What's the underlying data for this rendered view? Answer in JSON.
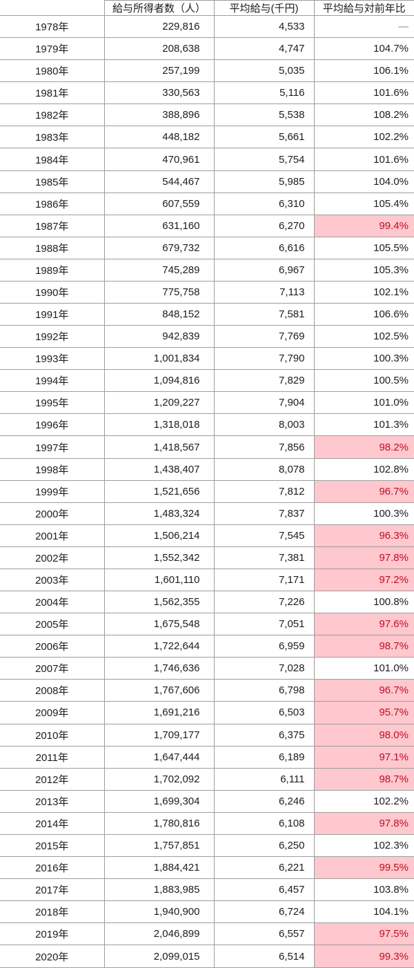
{
  "colors": {
    "border": "#9d9d9d",
    "text": "#1c1c1c",
    "highlight_bg": "#ffc7ce",
    "highlight_text": "#c00c20",
    "dash_text": "#8a8a8a"
  },
  "table": {
    "headers": {
      "year": "",
      "earners": "給与所得者数（人）",
      "avg_salary": "平均給与(千円)",
      "yoy": "平均給与対前年比"
    },
    "rows": [
      {
        "year": "1978年",
        "earners": "229,816",
        "avg": "4,533",
        "yoy": "―",
        "highlight": false,
        "dash": true
      },
      {
        "year": "1979年",
        "earners": "208,638",
        "avg": "4,747",
        "yoy": "104.7%",
        "highlight": false
      },
      {
        "year": "1980年",
        "earners": "257,199",
        "avg": "5,035",
        "yoy": "106.1%",
        "highlight": false
      },
      {
        "year": "1981年",
        "earners": "330,563",
        "avg": "5,116",
        "yoy": "101.6%",
        "highlight": false
      },
      {
        "year": "1982年",
        "earners": "388,896",
        "avg": "5,538",
        "yoy": "108.2%",
        "highlight": false
      },
      {
        "year": "1983年",
        "earners": "448,182",
        "avg": "5,661",
        "yoy": "102.2%",
        "highlight": false
      },
      {
        "year": "1984年",
        "earners": "470,961",
        "avg": "5,754",
        "yoy": "101.6%",
        "highlight": false
      },
      {
        "year": "1985年",
        "earners": "544,467",
        "avg": "5,985",
        "yoy": "104.0%",
        "highlight": false
      },
      {
        "year": "1986年",
        "earners": "607,559",
        "avg": "6,310",
        "yoy": "105.4%",
        "highlight": false
      },
      {
        "year": "1987年",
        "earners": "631,160",
        "avg": "6,270",
        "yoy": "99.4%",
        "highlight": true
      },
      {
        "year": "1988年",
        "earners": "679,732",
        "avg": "6,616",
        "yoy": "105.5%",
        "highlight": false
      },
      {
        "year": "1989年",
        "earners": "745,289",
        "avg": "6,967",
        "yoy": "105.3%",
        "highlight": false
      },
      {
        "year": "1990年",
        "earners": "775,758",
        "avg": "7,113",
        "yoy": "102.1%",
        "highlight": false
      },
      {
        "year": "1991年",
        "earners": "848,152",
        "avg": "7,581",
        "yoy": "106.6%",
        "highlight": false
      },
      {
        "year": "1992年",
        "earners": "942,839",
        "avg": "7,769",
        "yoy": "102.5%",
        "highlight": false
      },
      {
        "year": "1993年",
        "earners": "1,001,834",
        "avg": "7,790",
        "yoy": "100.3%",
        "highlight": false
      },
      {
        "year": "1994年",
        "earners": "1,094,816",
        "avg": "7,829",
        "yoy": "100.5%",
        "highlight": false
      },
      {
        "year": "1995年",
        "earners": "1,209,227",
        "avg": "7,904",
        "yoy": "101.0%",
        "highlight": false
      },
      {
        "year": "1996年",
        "earners": "1,318,018",
        "avg": "8,003",
        "yoy": "101.3%",
        "highlight": false
      },
      {
        "year": "1997年",
        "earners": "1,418,567",
        "avg": "7,856",
        "yoy": "98.2%",
        "highlight": true
      },
      {
        "year": "1998年",
        "earners": "1,438,407",
        "avg": "8,078",
        "yoy": "102.8%",
        "highlight": false
      },
      {
        "year": "1999年",
        "earners": "1,521,656",
        "avg": "7,812",
        "yoy": "96.7%",
        "highlight": true
      },
      {
        "year": "2000年",
        "earners": "1,483,324",
        "avg": "7,837",
        "yoy": "100.3%",
        "highlight": false
      },
      {
        "year": "2001年",
        "earners": "1,506,214",
        "avg": "7,545",
        "yoy": "96.3%",
        "highlight": true
      },
      {
        "year": "2002年",
        "earners": "1,552,342",
        "avg": "7,381",
        "yoy": "97.8%",
        "highlight": true
      },
      {
        "year": "2003年",
        "earners": "1,601,110",
        "avg": "7,171",
        "yoy": "97.2%",
        "highlight": true
      },
      {
        "year": "2004年",
        "earners": "1,562,355",
        "avg": "7,226",
        "yoy": "100.8%",
        "highlight": false
      },
      {
        "year": "2005年",
        "earners": "1,675,548",
        "avg": "7,051",
        "yoy": "97.6%",
        "highlight": true
      },
      {
        "year": "2006年",
        "earners": "1,722,644",
        "avg": "6,959",
        "yoy": "98.7%",
        "highlight": true
      },
      {
        "year": "2007年",
        "earners": "1,746,636",
        "avg": "7,028",
        "yoy": "101.0%",
        "highlight": false
      },
      {
        "year": "2008年",
        "earners": "1,767,606",
        "avg": "6,798",
        "yoy": "96.7%",
        "highlight": true
      },
      {
        "year": "2009年",
        "earners": "1,691,216",
        "avg": "6,503",
        "yoy": "95.7%",
        "highlight": true
      },
      {
        "year": "2010年",
        "earners": "1,709,177",
        "avg": "6,375",
        "yoy": "98.0%",
        "highlight": true
      },
      {
        "year": "2011年",
        "earners": "1,647,444",
        "avg": "6,189",
        "yoy": "97.1%",
        "highlight": true
      },
      {
        "year": "2012年",
        "earners": "1,702,092",
        "avg": "6,111",
        "yoy": "98.7%",
        "highlight": true
      },
      {
        "year": "2013年",
        "earners": "1,699,304",
        "avg": "6,246",
        "yoy": "102.2%",
        "highlight": false
      },
      {
        "year": "2014年",
        "earners": "1,780,816",
        "avg": "6,108",
        "yoy": "97.8%",
        "highlight": true
      },
      {
        "year": "2015年",
        "earners": "1,757,851",
        "avg": "6,250",
        "yoy": "102.3%",
        "highlight": false
      },
      {
        "year": "2016年",
        "earners": "1,884,421",
        "avg": "6,221",
        "yoy": "99.5%",
        "highlight": true
      },
      {
        "year": "2017年",
        "earners": "1,883,985",
        "avg": "6,457",
        "yoy": "103.8%",
        "highlight": false
      },
      {
        "year": "2018年",
        "earners": "1,940,900",
        "avg": "6,724",
        "yoy": "104.1%",
        "highlight": false
      },
      {
        "year": "2019年",
        "earners": "2,046,899",
        "avg": "6,557",
        "yoy": "97.5%",
        "highlight": true
      },
      {
        "year": "2020年",
        "earners": "2,099,015",
        "avg": "6,514",
        "yoy": "99.3%",
        "highlight": true
      }
    ]
  },
  "chart_data": {
    "type": "table",
    "title": "",
    "columns": [
      "",
      "給与所得者数（人）",
      "平均給与(千円)",
      "平均給与対前年比"
    ],
    "categories": [
      "1978年",
      "1979年",
      "1980年",
      "1981年",
      "1982年",
      "1983年",
      "1984年",
      "1985年",
      "1986年",
      "1987年",
      "1988年",
      "1989年",
      "1990年",
      "1991年",
      "1992年",
      "1993年",
      "1994年",
      "1995年",
      "1996年",
      "1997年",
      "1998年",
      "1999年",
      "2000年",
      "2001年",
      "2002年",
      "2003年",
      "2004年",
      "2005年",
      "2006年",
      "2007年",
      "2008年",
      "2009年",
      "2010年",
      "2011年",
      "2012年",
      "2013年",
      "2014年",
      "2015年",
      "2016年",
      "2017年",
      "2018年",
      "2019年",
      "2020年"
    ],
    "series": [
      {
        "name": "給与所得者数（人）",
        "values": [
          229816,
          208638,
          257199,
          330563,
          388896,
          448182,
          470961,
          544467,
          607559,
          631160,
          679732,
          745289,
          775758,
          848152,
          942839,
          1001834,
          1094816,
          1209227,
          1318018,
          1418567,
          1438407,
          1521656,
          1483324,
          1506214,
          1552342,
          1601110,
          1562355,
          1675548,
          1722644,
          1746636,
          1767606,
          1691216,
          1709177,
          1647444,
          1702092,
          1699304,
          1780816,
          1757851,
          1884421,
          1883985,
          1940900,
          2046899,
          2099015
        ]
      },
      {
        "name": "平均給与(千円)",
        "values": [
          4533,
          4747,
          5035,
          5116,
          5538,
          5661,
          5754,
          5985,
          6310,
          6270,
          6616,
          6967,
          7113,
          7581,
          7769,
          7790,
          7829,
          7904,
          8003,
          7856,
          8078,
          7812,
          7837,
          7545,
          7381,
          7171,
          7226,
          7051,
          6959,
          7028,
          6798,
          6503,
          6375,
          6189,
          6111,
          6246,
          6108,
          6250,
          6221,
          6457,
          6724,
          6557,
          6514
        ]
      },
      {
        "name": "平均給与対前年比(%)",
        "values": [
          null,
          104.7,
          106.1,
          101.6,
          108.2,
          102.2,
          101.6,
          104.0,
          105.4,
          99.4,
          105.5,
          105.3,
          102.1,
          106.6,
          102.5,
          100.3,
          100.5,
          101.0,
          101.3,
          98.2,
          102.8,
          96.7,
          100.3,
          96.3,
          97.8,
          97.2,
          100.8,
          97.6,
          98.7,
          101.0,
          96.7,
          95.7,
          98.0,
          97.1,
          98.7,
          102.2,
          97.8,
          102.3,
          99.5,
          103.8,
          104.1,
          97.5,
          99.3
        ]
      }
    ],
    "legend_position": "none",
    "grid": true,
    "notes": "cells of 平均給与対前年比 below 100% are filled #ffc7ce with dark red text; 1978 shows a dash (no prior year)"
  }
}
